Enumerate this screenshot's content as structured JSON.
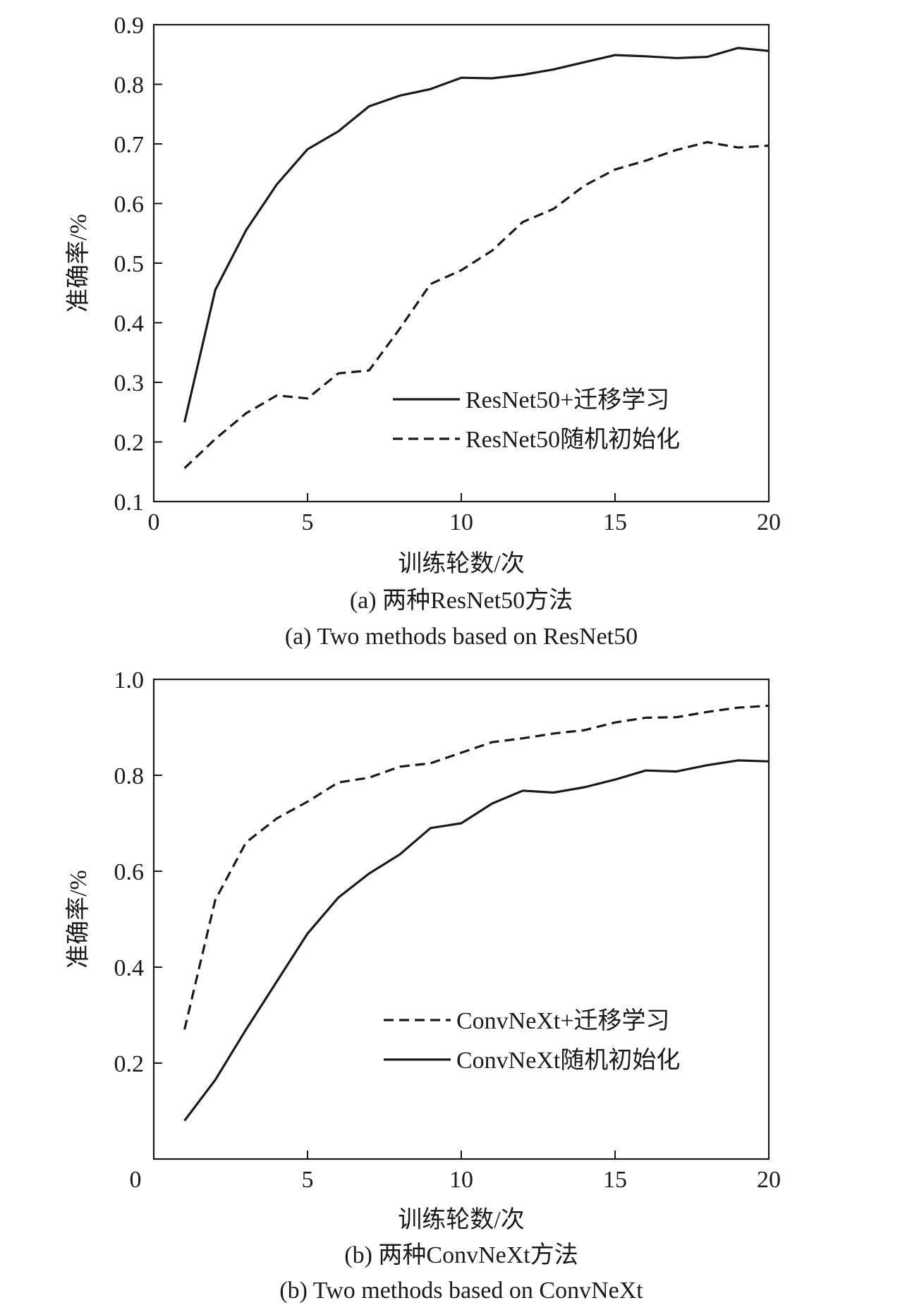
{
  "chart_data": [
    {
      "type": "line",
      "xlabel": "训练轮数/次",
      "ylabel": "准确率/%",
      "xlim": [
        0,
        20
      ],
      "ylim": [
        0.1,
        0.9
      ],
      "x_ticks": [
        "0",
        "5",
        "10",
        "15",
        "20"
      ],
      "y_ticks": [
        "0.1",
        "0.2",
        "0.3",
        "0.4",
        "0.5",
        "0.6",
        "0.7",
        "0.8",
        "0.9"
      ],
      "grid": false,
      "legend_position": "bottom-right",
      "caption_cn": "(a) 两种ResNet50方法",
      "caption_en": "(a) Two methods based on ResNet50",
      "series": [
        {
          "name": "ResNet50+迁移学习",
          "style": "solid",
          "x": [
            1,
            2,
            3,
            4,
            5,
            6,
            7,
            8,
            9,
            10,
            11,
            12,
            13,
            14,
            15,
            16,
            17,
            18,
            19,
            20
          ],
          "values": [
            0.233,
            0.455,
            0.555,
            0.632,
            0.691,
            0.721,
            0.763,
            0.781,
            0.792,
            0.811,
            0.81,
            0.816,
            0.825,
            0.837,
            0.849,
            0.847,
            0.844,
            0.846,
            0.861,
            0.856
          ]
        },
        {
          "name": "ResNet50随机初始化",
          "style": "dashed",
          "x": [
            1,
            2,
            3,
            4,
            5,
            6,
            7,
            8,
            9,
            10,
            11,
            12,
            13,
            14,
            15,
            16,
            17,
            18,
            19,
            20
          ],
          "values": [
            0.156,
            0.205,
            0.248,
            0.278,
            0.273,
            0.315,
            0.32,
            0.39,
            0.465,
            0.488,
            0.521,
            0.569,
            0.591,
            0.63,
            0.657,
            0.672,
            0.69,
            0.703,
            0.694,
            0.697
          ]
        }
      ]
    },
    {
      "type": "line",
      "xlabel": "训练轮数/次",
      "ylabel": "准确率/%",
      "xlim": [
        0,
        20
      ],
      "ylim": [
        0,
        1.0
      ],
      "x_ticks": [
        "0",
        "5",
        "10",
        "15",
        "20"
      ],
      "y_ticks": [
        "0.2",
        "0.4",
        "0.6",
        "0.8",
        "1.0"
      ],
      "grid": false,
      "legend_position": "bottom-right",
      "caption_cn": "(b) 两种ConvNeXt方法",
      "caption_en": "(b) Two methods based on ConvNeXt",
      "series": [
        {
          "name": "ConvNeXt+迁移学习",
          "style": "dashed",
          "x": [
            1,
            2,
            3,
            4,
            5,
            6,
            7,
            8,
            9,
            10,
            11,
            12,
            13,
            14,
            15,
            16,
            17,
            18,
            19,
            20
          ],
          "values": [
            0.27,
            0.54,
            0.66,
            0.71,
            0.745,
            0.785,
            0.795,
            0.818,
            0.825,
            0.847,
            0.869,
            0.877,
            0.887,
            0.894,
            0.91,
            0.92,
            0.921,
            0.932,
            0.941,
            0.945
          ]
        },
        {
          "name": "ConvNeXt随机初始化",
          "style": "solid",
          "x": [
            1,
            2,
            3,
            4,
            5,
            6,
            7,
            8,
            9,
            10,
            11,
            12,
            13,
            14,
            15,
            16,
            17,
            18,
            19,
            20
          ],
          "values": [
            0.08,
            0.165,
            0.27,
            0.37,
            0.47,
            0.545,
            0.595,
            0.635,
            0.69,
            0.7,
            0.741,
            0.768,
            0.764,
            0.775,
            0.791,
            0.81,
            0.808,
            0.821,
            0.831,
            0.829
          ]
        }
      ]
    }
  ]
}
